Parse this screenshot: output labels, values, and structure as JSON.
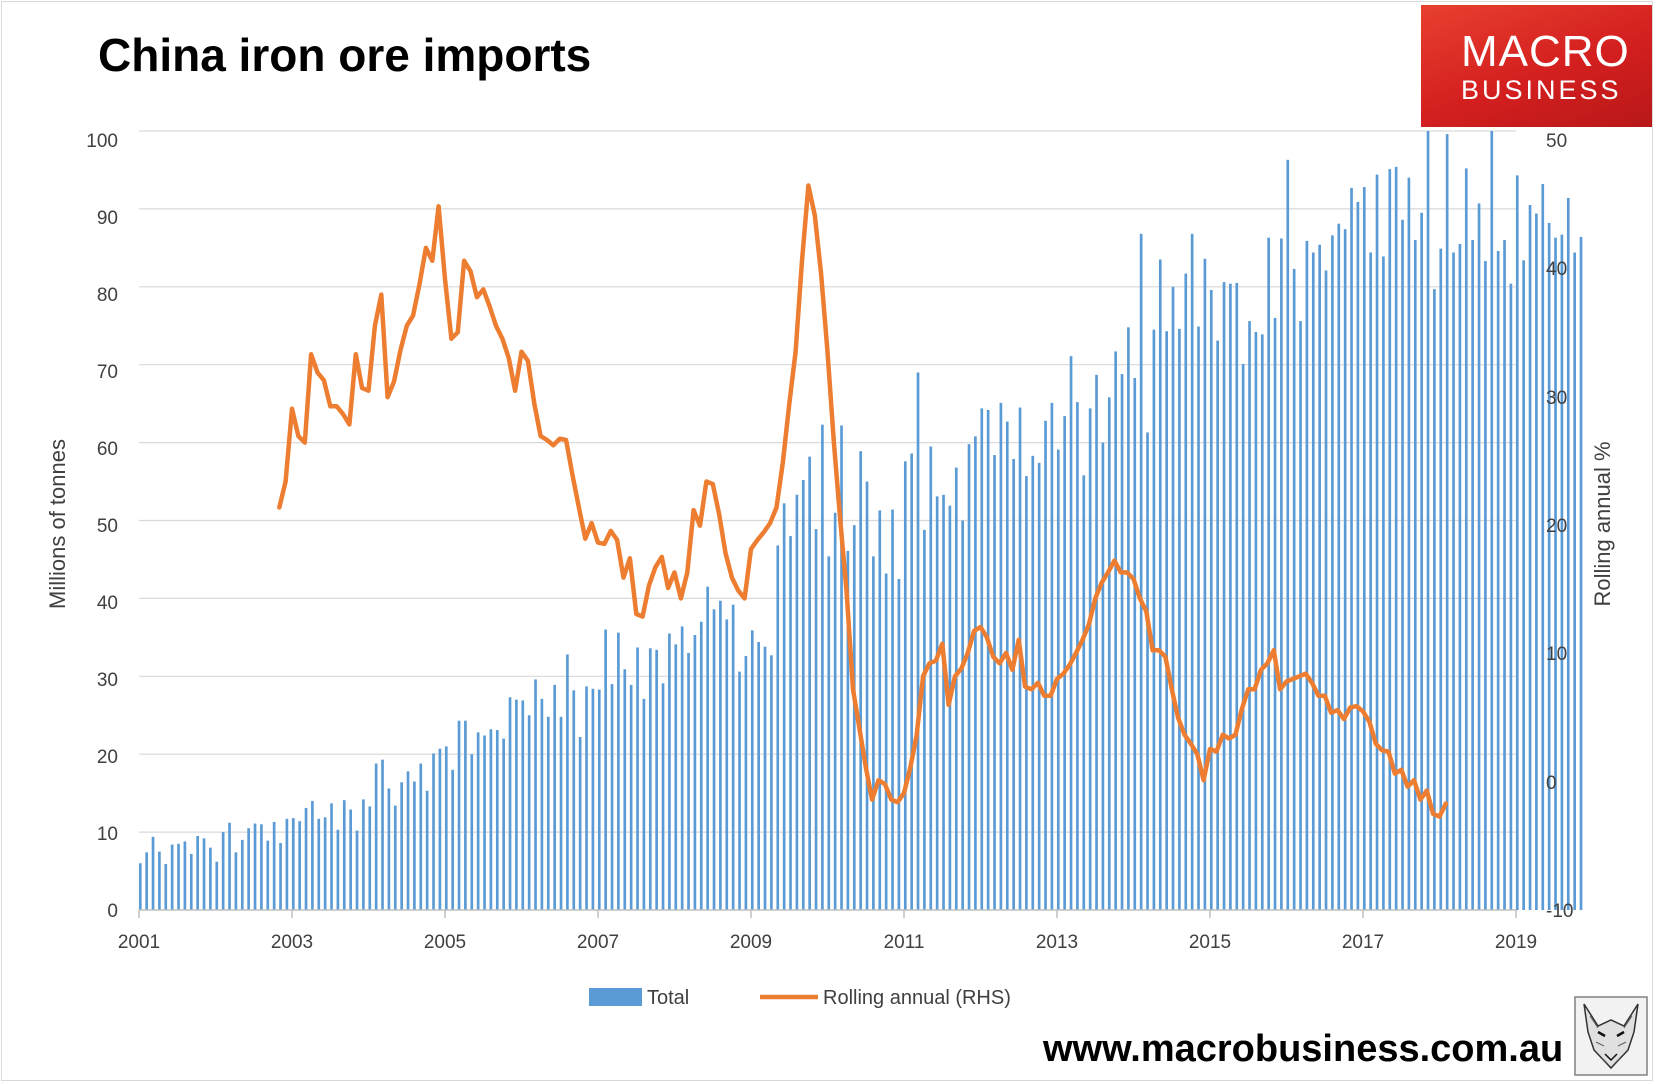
{
  "header": {
    "title": "China iron ore imports",
    "logo_line1": "MACRO",
    "logo_line2": "BUSINESS",
    "website": "www.macrobusiness.com.au"
  },
  "colors": {
    "bar": "#5b9bd5",
    "line": "#ed7d31",
    "grid": "#d9d9d9",
    "logo_red": "#d41f1f"
  },
  "icons": {
    "mascot": "fox-sketch-icon"
  },
  "chart_data": {
    "type": "bar",
    "x_ticks": [
      "2001",
      "2003",
      "2005",
      "2007",
      "2009",
      "2011",
      "2013",
      "2015",
      "2017",
      "2019"
    ],
    "xlim": [
      "2001-01",
      "2019-01"
    ],
    "ylabel": "Millions of tonnes",
    "ylim": [
      0,
      100
    ],
    "y_ticks": [
      0,
      10,
      20,
      30,
      40,
      50,
      60,
      70,
      80,
      90,
      100
    ],
    "y2label": "Rolling annual %",
    "y2lim": [
      -10,
      50
    ],
    "y2_ticks": [
      -10,
      0,
      10,
      20,
      30,
      40,
      50
    ],
    "grid": true,
    "legend_position": "bottom",
    "series": [
      {
        "name": "Total",
        "type": "bar",
        "axis": "left",
        "x_start": "2001-01",
        "frequency": "monthly",
        "values": [
          6.0,
          7.4,
          9.4,
          7.5,
          5.9,
          8.4,
          8.5,
          8.8,
          7.2,
          9.5,
          9.2,
          8.0,
          6.2,
          10.0,
          11.2,
          7.4,
          9.0,
          10.5,
          11.1,
          11.0,
          8.9,
          11.3,
          8.6,
          11.7,
          11.8,
          11.4,
          13.1,
          14.0,
          11.7,
          11.9,
          13.7,
          10.3,
          14.1,
          12.9,
          10.2,
          14.2,
          13.3,
          18.8,
          19.3,
          15.6,
          13.4,
          16.4,
          17.8,
          16.5,
          18.8,
          15.3,
          20.1,
          20.7,
          21.0,
          18.0,
          24.3,
          24.3,
          20.0,
          22.8,
          22.4,
          23.2,
          23.1,
          22.0,
          27.3,
          27.0,
          26.9,
          25.0,
          29.6,
          27.1,
          24.8,
          28.9,
          24.8,
          32.8,
          28.2,
          22.2,
          28.7,
          28.4,
          28.3,
          36.0,
          29.0,
          35.6,
          30.9,
          28.9,
          33.7,
          27.1,
          33.6,
          33.4,
          29.1,
          35.5,
          34.1,
          36.4,
          33.0,
          35.3,
          37.0,
          41.5,
          38.6,
          39.7,
          37.3,
          39.2,
          30.6,
          32.6,
          35.9,
          34.4,
          33.8,
          32.7,
          46.8,
          52.2,
          48.0,
          53.3,
          55.2,
          58.2,
          48.9,
          62.3,
          45.4,
          51.0,
          62.2,
          46.1,
          49.4,
          58.9,
          55.0,
          45.4,
          51.3,
          43.2,
          51.4,
          42.5,
          57.6,
          58.6,
          69.0,
          48.8,
          59.5,
          53.1,
          53.3,
          51.9,
          56.8,
          50.0,
          59.8,
          60.8,
          64.4,
          64.2,
          58.4,
          65.1,
          62.7,
          57.9,
          64.5,
          55.7,
          58.3,
          57.4,
          62.8,
          65.1,
          59.1,
          63.4,
          71.1,
          65.2,
          55.8,
          64.4,
          68.7,
          60.0,
          65.8,
          71.7,
          68.8,
          74.8,
          68.3,
          86.8,
          61.3,
          74.5,
          83.5,
          74.3,
          80.0,
          74.6,
          81.7,
          86.8,
          74.9,
          83.6,
          79.6,
          73.1,
          80.6,
          80.4,
          80.5,
          70.1,
          75.6,
          74.2,
          73.9,
          86.3,
          76.0,
          86.2,
          96.3,
          82.3,
          75.6,
          85.9,
          84.4,
          85.4,
          82.1,
          86.6,
          88.1,
          87.4,
          92.7,
          90.9,
          92.8,
          84.4,
          94.4,
          83.9,
          95.1,
          95.4,
          88.6,
          94.0,
          86.0,
          89.5,
          100.0,
          79.7,
          84.9,
          99.6,
          84.4,
          85.5,
          95.2,
          86.0,
          90.7,
          83.3,
          100.0,
          84.6,
          86.0,
          80.4,
          94.3,
          83.4,
          90.5,
          89.4,
          93.2,
          88.2,
          86.3,
          86.7,
          91.4,
          84.4,
          86.4
        ]
      },
      {
        "name": "Rolling annual (RHS)",
        "type": "line",
        "axis": "right",
        "points": [
          [
            "2002-11",
            21.0
          ],
          [
            "2002-12",
            23.0
          ],
          [
            "2003-01",
            28.6
          ],
          [
            "2003-02",
            26.5
          ],
          [
            "2003-03",
            26.0
          ],
          [
            "2003-04",
            32.8
          ],
          [
            "2003-05",
            31.4
          ],
          [
            "2003-06",
            30.8
          ],
          [
            "2003-07",
            28.8
          ],
          [
            "2003-08",
            28.8
          ],
          [
            "2003-09",
            28.2
          ],
          [
            "2003-10",
            27.4
          ],
          [
            "2003-11",
            32.8
          ],
          [
            "2003-12",
            30.2
          ],
          [
            "2004-01",
            30.0
          ],
          [
            "2004-02",
            35.0
          ],
          [
            "2004-03",
            37.4
          ],
          [
            "2004-04",
            29.5
          ],
          [
            "2004-05",
            30.7
          ],
          [
            "2004-06",
            33.1
          ],
          [
            "2004-07",
            35.0
          ],
          [
            "2004-08",
            35.8
          ],
          [
            "2004-09",
            38.2
          ],
          [
            "2004-10",
            41.0
          ],
          [
            "2004-11",
            40.0
          ],
          [
            "2004-12",
            44.2
          ],
          [
            "2005-01",
            38.6
          ],
          [
            "2005-02",
            34.0
          ],
          [
            "2005-03",
            34.5
          ],
          [
            "2005-04",
            40.0
          ],
          [
            "2005-05",
            39.2
          ],
          [
            "2005-06",
            37.2
          ],
          [
            "2005-07",
            37.8
          ],
          [
            "2005-08",
            36.5
          ],
          [
            "2005-09",
            35.0
          ],
          [
            "2005-10",
            34.0
          ],
          [
            "2005-11",
            32.5
          ],
          [
            "2005-12",
            30.0
          ],
          [
            "2006-01",
            33.0
          ],
          [
            "2006-02",
            32.3
          ],
          [
            "2006-03",
            29.0
          ],
          [
            "2006-04",
            26.5
          ],
          [
            "2006-05",
            26.2
          ],
          [
            "2006-06",
            25.8
          ],
          [
            "2006-07",
            26.3
          ],
          [
            "2006-08",
            26.2
          ],
          [
            "2006-09",
            23.5
          ],
          [
            "2006-10",
            21.0
          ],
          [
            "2006-11",
            18.6
          ],
          [
            "2006-12",
            19.8
          ],
          [
            "2007-01",
            18.3
          ],
          [
            "2007-02",
            18.2
          ],
          [
            "2007-03",
            19.2
          ],
          [
            "2007-04",
            18.5
          ],
          [
            "2007-05",
            15.6
          ],
          [
            "2007-06",
            17.1
          ],
          [
            "2007-07",
            12.8
          ],
          [
            "2007-08",
            12.6
          ],
          [
            "2007-09",
            15.0
          ],
          [
            "2007-10",
            16.4
          ],
          [
            "2007-11",
            17.2
          ],
          [
            "2007-12",
            14.8
          ],
          [
            "2008-01",
            16.0
          ],
          [
            "2008-02",
            14.0
          ],
          [
            "2008-03",
            16.0
          ],
          [
            "2008-04",
            20.8
          ],
          [
            "2008-05",
            19.6
          ],
          [
            "2008-06",
            23.0
          ],
          [
            "2008-07",
            22.8
          ],
          [
            "2008-08",
            20.5
          ],
          [
            "2008-09",
            17.5
          ],
          [
            "2008-10",
            15.6
          ],
          [
            "2008-11",
            14.6
          ],
          [
            "2008-12",
            14.0
          ],
          [
            "2009-01",
            17.8
          ],
          [
            "2009-02",
            18.5
          ],
          [
            "2009-03",
            19.1
          ],
          [
            "2009-04",
            19.8
          ],
          [
            "2009-05",
            21.0
          ],
          [
            "2009-06",
            24.5
          ],
          [
            "2009-07",
            29.0
          ],
          [
            "2009-08",
            33.0
          ],
          [
            "2009-09",
            40.0
          ],
          [
            "2009-10",
            45.8
          ],
          [
            "2009-11",
            43.5
          ],
          [
            "2009-12",
            39.0
          ],
          [
            "2010-01",
            33.0
          ],
          [
            "2010-02",
            26.0
          ],
          [
            "2010-03",
            20.0
          ],
          [
            "2010-04",
            14.5
          ],
          [
            "2010-05",
            7.0
          ],
          [
            "2010-06",
            4.0
          ],
          [
            "2010-07",
            1.0
          ],
          [
            "2010-08",
            -1.5
          ],
          [
            "2010-09",
            0.0
          ],
          [
            "2010-10",
            -0.3
          ],
          [
            "2010-11",
            -1.5
          ],
          [
            "2010-12",
            -1.7
          ],
          [
            "2011-01",
            -1.0
          ],
          [
            "2011-02",
            1.0
          ],
          [
            "2011-03",
            3.5
          ],
          [
            "2011-04",
            8.0
          ],
          [
            "2011-05",
            9.0
          ],
          [
            "2011-06",
            9.2
          ],
          [
            "2011-07",
            10.5
          ],
          [
            "2011-08",
            5.8
          ],
          [
            "2011-09",
            8.0
          ],
          [
            "2011-10",
            8.6
          ],
          [
            "2011-11",
            9.8
          ],
          [
            "2011-12",
            11.5
          ],
          [
            "2012-01",
            11.8
          ],
          [
            "2012-02",
            11.0
          ],
          [
            "2012-03",
            9.5
          ],
          [
            "2012-04",
            9.0
          ],
          [
            "2012-05",
            9.8
          ],
          [
            "2012-06",
            8.5
          ],
          [
            "2012-07",
            10.8
          ],
          [
            "2012-08",
            7.2
          ],
          [
            "2012-09",
            7.0
          ],
          [
            "2012-10",
            7.5
          ],
          [
            "2012-11",
            6.5
          ],
          [
            "2012-12",
            6.5
          ],
          [
            "2013-01",
            7.8
          ],
          [
            "2013-02",
            8.2
          ],
          [
            "2013-03",
            8.9
          ],
          [
            "2013-04",
            9.8
          ],
          [
            "2013-05",
            10.8
          ],
          [
            "2013-06",
            12.0
          ],
          [
            "2013-07",
            14.0
          ],
          [
            "2013-08",
            15.2
          ],
          [
            "2013-09",
            16.0
          ],
          [
            "2013-10",
            16.9
          ],
          [
            "2013-11",
            16.0
          ],
          [
            "2013-12",
            16.0
          ],
          [
            "2014-01",
            15.5
          ],
          [
            "2014-02",
            14.0
          ],
          [
            "2014-03",
            13.0
          ],
          [
            "2014-04",
            10.0
          ],
          [
            "2014-05",
            10.0
          ],
          [
            "2014-06",
            9.5
          ],
          [
            "2014-07",
            7.0
          ],
          [
            "2014-08",
            4.8
          ],
          [
            "2014-09",
            3.5
          ],
          [
            "2014-10",
            2.8
          ],
          [
            "2014-11",
            2.0
          ],
          [
            "2014-12",
            0.0
          ],
          [
            "2015-01",
            2.4
          ],
          [
            "2015-02",
            2.2
          ],
          [
            "2015-03",
            3.5
          ],
          [
            "2015-04",
            3.2
          ],
          [
            "2015-05",
            3.5
          ],
          [
            "2015-06",
            5.5
          ],
          [
            "2015-07",
            7.0
          ],
          [
            "2015-08",
            7.0
          ],
          [
            "2015-09",
            8.5
          ],
          [
            "2015-10",
            9.0
          ],
          [
            "2015-11",
            10.0
          ],
          [
            "2015-12",
            7.0
          ],
          [
            "2016-01",
            7.6
          ],
          [
            "2016-02",
            7.8
          ],
          [
            "2016-03",
            8.0
          ],
          [
            "2016-04",
            8.2
          ],
          [
            "2016-05",
            7.5
          ],
          [
            "2016-06",
            6.5
          ],
          [
            "2016-07",
            6.5
          ],
          [
            "2016-08",
            5.2
          ],
          [
            "2016-09",
            5.4
          ],
          [
            "2016-10",
            4.7
          ],
          [
            "2016-11",
            5.6
          ],
          [
            "2016-12",
            5.7
          ],
          [
            "2017-01",
            5.3
          ],
          [
            "2017-02",
            4.5
          ],
          [
            "2017-03",
            2.8
          ],
          [
            "2017-04",
            2.3
          ],
          [
            "2017-05",
            2.2
          ],
          [
            "2017-06",
            0.5
          ],
          [
            "2017-07",
            0.8
          ],
          [
            "2017-08",
            -0.5
          ],
          [
            "2017-09",
            0.0
          ],
          [
            "2017-10",
            -1.5
          ],
          [
            "2017-11",
            -0.8
          ],
          [
            "2017-12",
            -2.6
          ],
          [
            "2018-01",
            -2.8
          ],
          [
            "2018-02",
            -1.8
          ]
        ]
      }
    ]
  },
  "axis_text": {
    "x": [
      "2001",
      "2003",
      "2005",
      "2007",
      "2009",
      "2011",
      "2013",
      "2015",
      "2017",
      "2019"
    ],
    "y_left": [
      "0",
      "10",
      "20",
      "30",
      "40",
      "50",
      "60",
      "70",
      "80",
      "90",
      "100"
    ],
    "y_right": [
      "-10",
      "0",
      "10",
      "20",
      "30",
      "40",
      "50"
    ]
  },
  "legend": {
    "bar_label": "Total",
    "line_label": "Rolling annual (RHS)"
  }
}
